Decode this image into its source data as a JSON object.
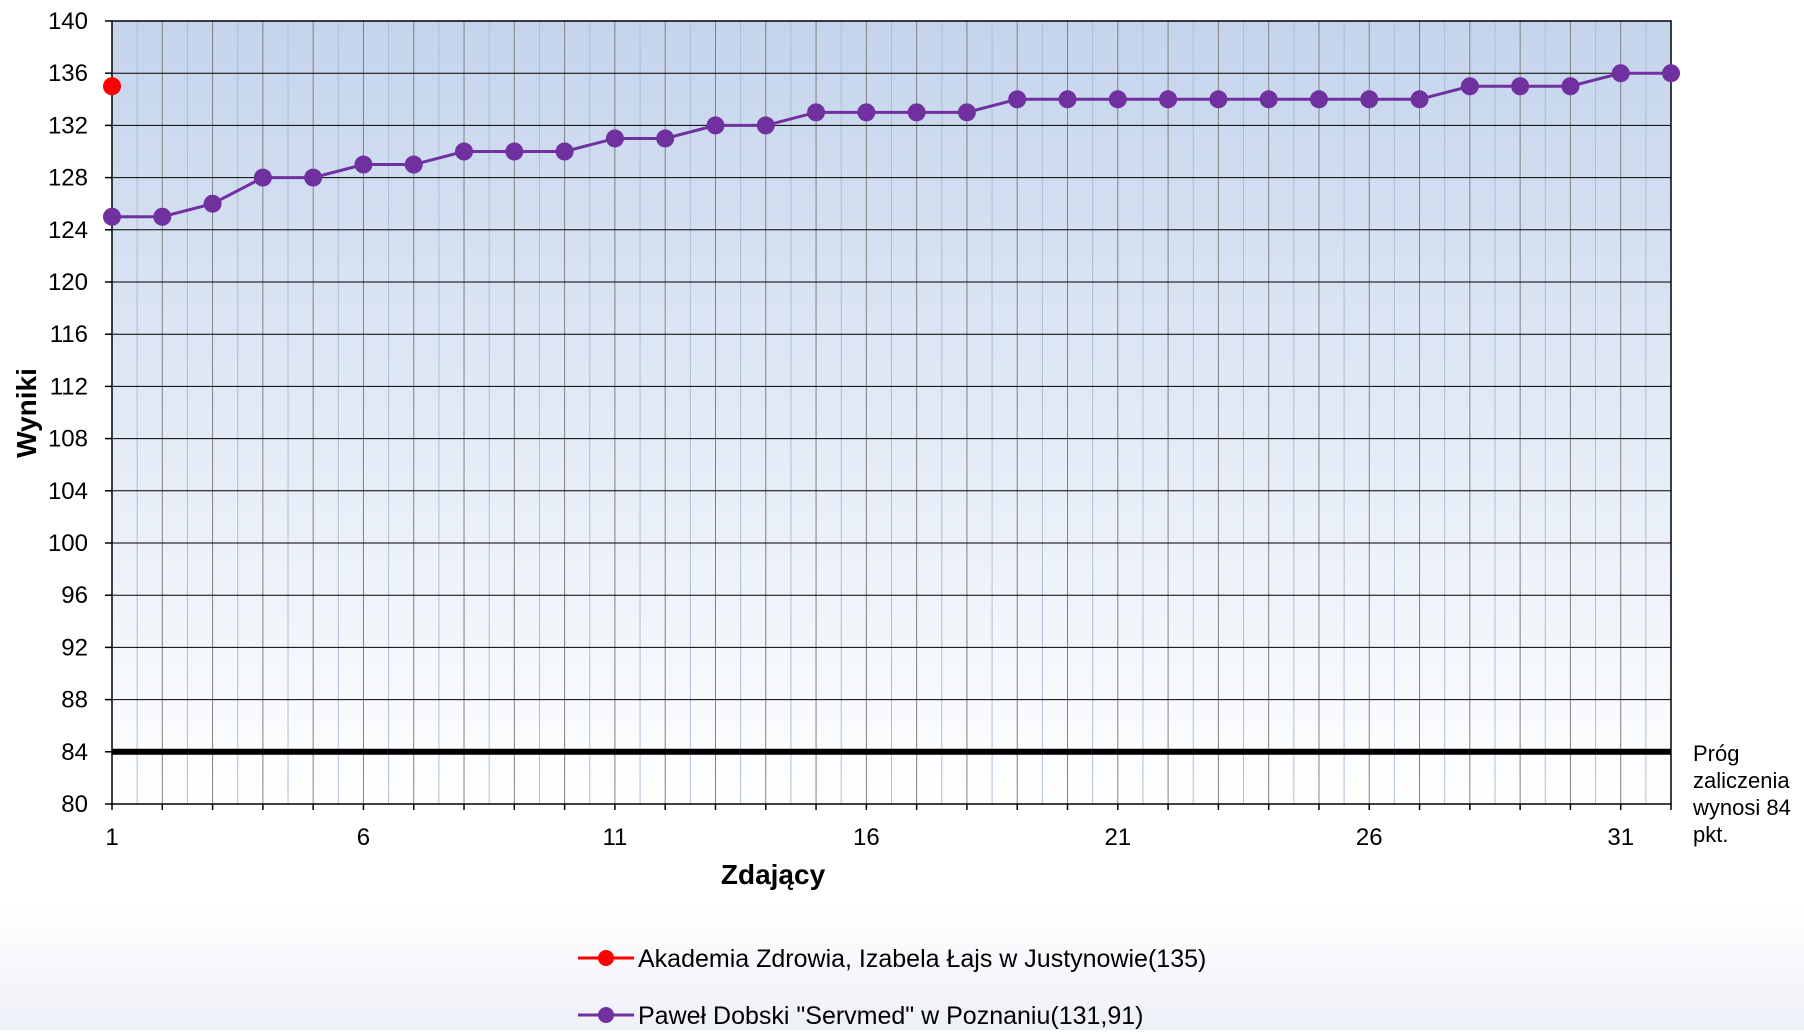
{
  "chart_data": {
    "type": "line",
    "xlabel": "Zdający",
    "ylabel": "Wyniki",
    "xlim": [
      1,
      32
    ],
    "ylim": [
      80,
      140
    ],
    "x_ticks": [
      1,
      6,
      11,
      16,
      21,
      26,
      31
    ],
    "y_ticks": [
      80,
      84,
      88,
      92,
      96,
      100,
      104,
      108,
      112,
      116,
      120,
      124,
      128,
      132,
      136,
      140
    ],
    "grid": true,
    "threshold": {
      "value": 84,
      "label_lines": [
        "Próg",
        "zaliczenia",
        "wynosi 84",
        "pkt."
      ]
    },
    "legend_position": "bottom",
    "series": [
      {
        "name": "Akademia Zdrowia, Izabela Łajs w Justynowie(135)",
        "color": "#ff0000",
        "x": [
          1
        ],
        "values": [
          135
        ]
      },
      {
        "name": "Paweł Dobski \"Servmed\" w Poznaniu(131,91)",
        "color": "#7030a0",
        "x": [
          1,
          2,
          3,
          4,
          5,
          6,
          7,
          8,
          9,
          10,
          11,
          12,
          13,
          14,
          15,
          16,
          17,
          18,
          19,
          20,
          21,
          22,
          23,
          24,
          25,
          26,
          27,
          28,
          29,
          30,
          31,
          32
        ],
        "values": [
          125,
          125,
          126,
          128,
          128,
          129,
          129,
          130,
          130,
          130,
          131,
          131,
          132,
          132,
          133,
          133,
          133,
          133,
          134,
          134,
          134,
          134,
          134,
          134,
          134,
          134,
          134,
          135,
          135,
          135,
          136,
          136
        ]
      }
    ]
  }
}
